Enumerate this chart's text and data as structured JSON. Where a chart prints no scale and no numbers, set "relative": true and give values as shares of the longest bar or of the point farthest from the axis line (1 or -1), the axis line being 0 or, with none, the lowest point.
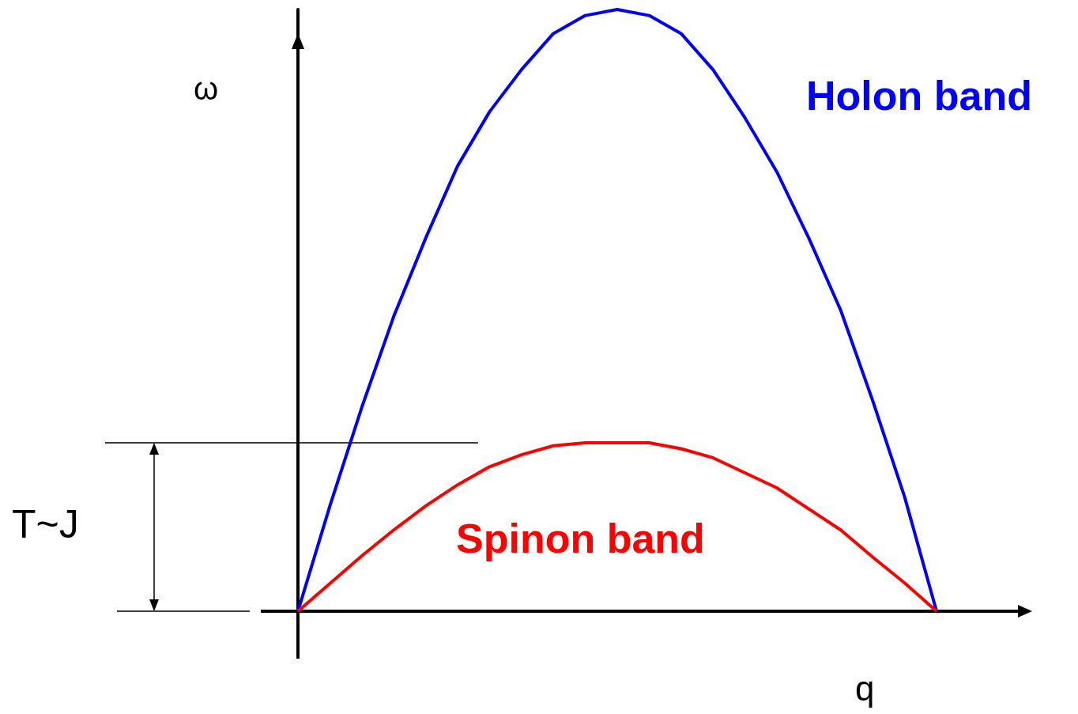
{
  "chart_data": {
    "type": "line",
    "relative": true,
    "xlabel": "q",
    "ylabel": "ω",
    "marker": "none",
    "grid": false,
    "legend": false,
    "categories": [
      null,
      null,
      null,
      null,
      null,
      null,
      null,
      null,
      null,
      null,
      null,
      null,
      null,
      null,
      null,
      null,
      null,
      null,
      null,
      null,
      null
    ],
    "series": [
      {
        "name": "Holon band",
        "color": "#0000ff",
        "values": [
          0,
          0.175,
          0.339,
          0.49,
          0.62,
          0.74,
          0.83,
          0.9,
          0.96,
          0.99,
          1,
          0.99,
          0.96,
          0.9,
          0.82,
          0.73,
          0.62,
          0.5,
          0.35,
          0.19,
          0
        ]
      },
      {
        "name": "Spinon band",
        "color": "#ff0000",
        "values": [
          0,
          0.046,
          0.092,
          0.135,
          0.175,
          0.21,
          0.24,
          0.26,
          0.275,
          0.28,
          0.28,
          0.28,
          0.27,
          0.255,
          0.23,
          0.205,
          0.17,
          0.135,
          0.09,
          0.047,
          0
        ]
      }
    ],
    "ref_lines": [
      {
        "axis": "y",
        "value": 0.28,
        "label": "T~J"
      }
    ]
  }
}
